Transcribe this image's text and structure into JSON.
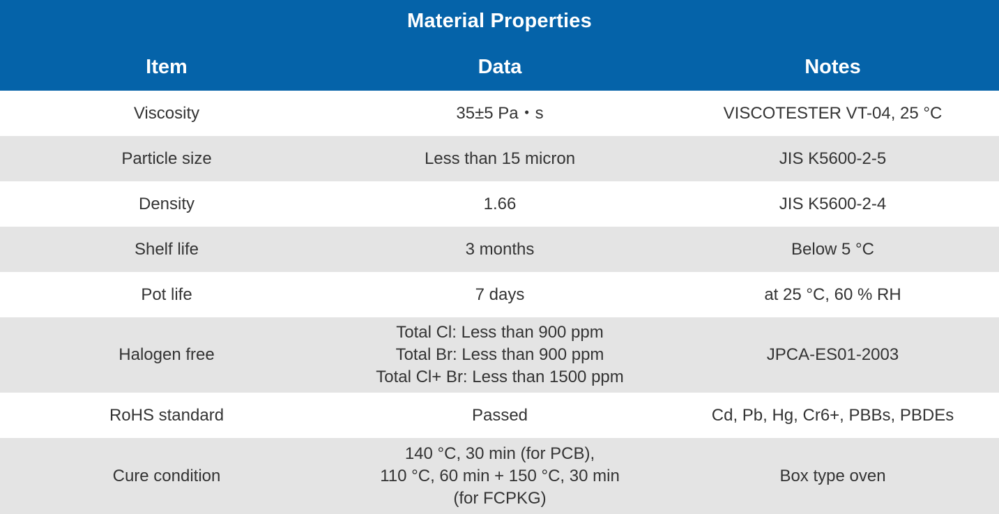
{
  "table": {
    "title": "Material Properties",
    "headers": [
      "Item",
      "Data",
      "Notes"
    ],
    "rows": [
      {
        "item": "Viscosity",
        "data": [
          "35±5 Pa・s"
        ],
        "notes": "VISCOTESTER VT-04, 25 °C"
      },
      {
        "item": "Particle size",
        "data": [
          "Less than 15 micron"
        ],
        "notes": "JIS K5600-2-5"
      },
      {
        "item": "Density",
        "data": [
          "1.66"
        ],
        "notes": "JIS K5600-2-4"
      },
      {
        "item": "Shelf life",
        "data": [
          "3 months"
        ],
        "notes": "Below 5 °C"
      },
      {
        "item": "Pot life",
        "data": [
          "7 days"
        ],
        "notes": "at 25 °C, 60 % RH"
      },
      {
        "item": "Halogen free",
        "data": [
          "Total Cl: Less than 900 ppm",
          "Total Br: Less than 900 ppm",
          "Total Cl+ Br: Less than 1500 ppm"
        ],
        "notes": "JPCA-ES01-2003"
      },
      {
        "item": "RoHS standard",
        "data": [
          "Passed"
        ],
        "notes": "Cd, Pb, Hg, Cr6+, PBBs, PBDEs"
      },
      {
        "item": "Cure condition",
        "data": [
          "140 °C, 30 min (for PCB),",
          "110 °C, 60 min + 150 °C, 30 min",
          "(for FCPKG)"
        ],
        "notes": "Box type oven"
      }
    ]
  },
  "colors": {
    "header_bg": "#0563a9",
    "header_text": "#ffffff",
    "row_alt_bg": "#e4e4e4",
    "body_text": "#333333"
  }
}
